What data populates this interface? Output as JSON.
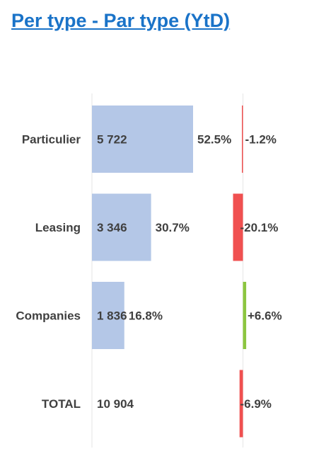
{
  "title": "Per type - Par type (YtD)",
  "colors": {
    "title": "#1a73c8",
    "bar": "#b4c7e7",
    "negative": "#f05050",
    "positive": "#8cc63f",
    "text": "#404040",
    "axis": "#e6e6e6"
  },
  "chart_data": {
    "type": "bar",
    "categories": [
      "Particulier",
      "Leasing",
      "Companies",
      "TOTAL"
    ],
    "values": [
      5722,
      3346,
      1836,
      10904
    ],
    "value_labels": [
      "5 722",
      "3 346",
      "1 836",
      "10 904"
    ],
    "share_labels": [
      "52.5%",
      "30.7%",
      "16.8%",
      ""
    ],
    "share": [
      52.5,
      30.7,
      16.8,
      null
    ],
    "change": [
      -1.2,
      -20.1,
      6.6,
      -6.9
    ],
    "change_labels": [
      "-1.2%",
      "-20.1%",
      "+6.6%",
      "-6.9%"
    ],
    "grid": false,
    "legend": "none"
  }
}
